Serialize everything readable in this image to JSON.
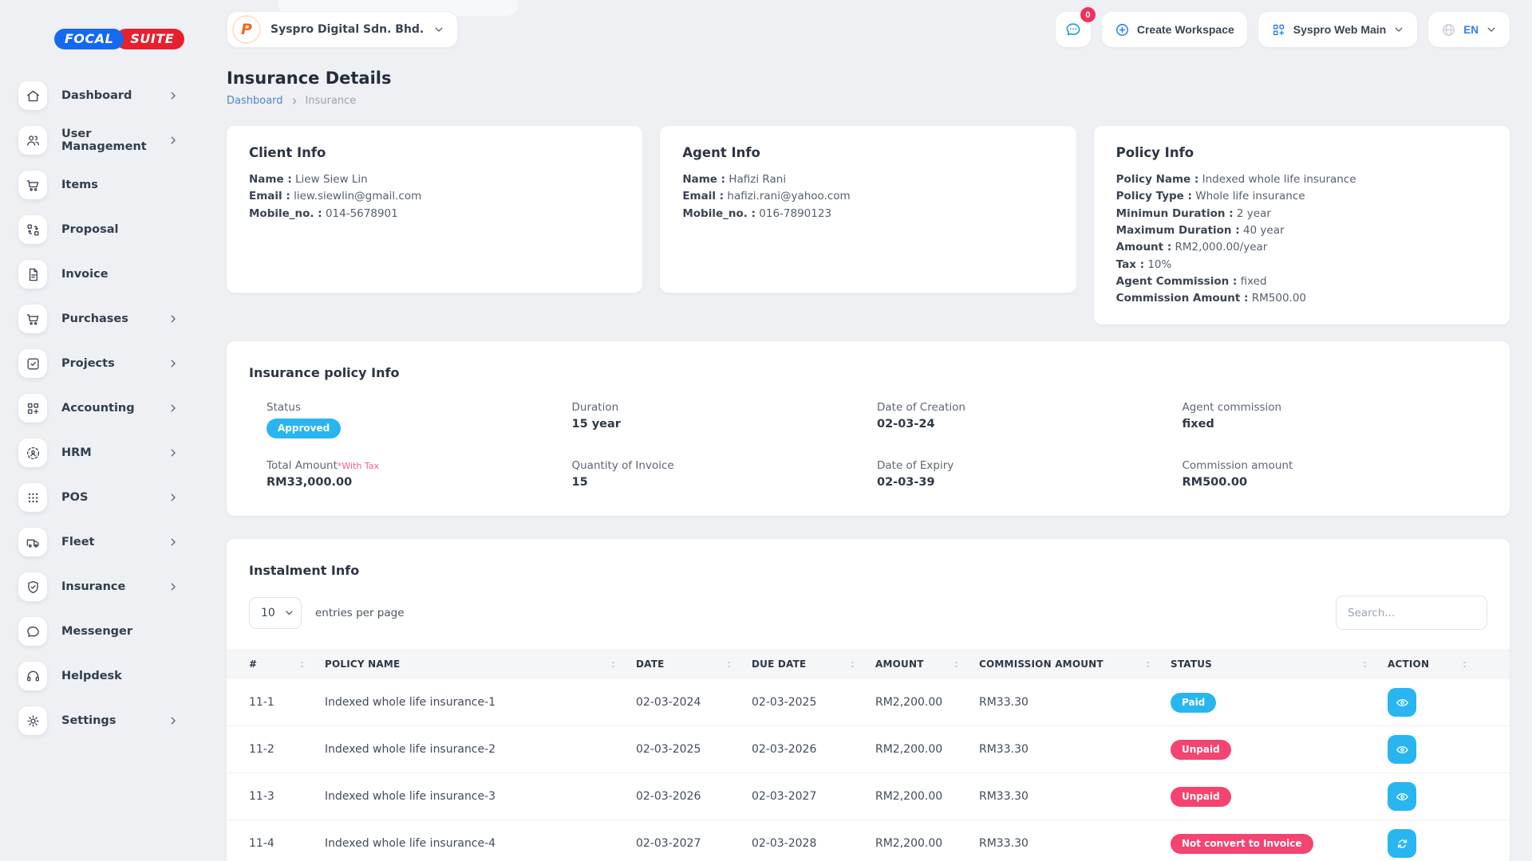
{
  "brand": {
    "focal": "FOCAL",
    "suite": "SUITE"
  },
  "sidebar": {
    "items": [
      {
        "label": "Dashboard",
        "icon": "home",
        "chevron": true
      },
      {
        "label": "User Management",
        "icon": "users",
        "chevron": true
      },
      {
        "label": "Items",
        "icon": "cart",
        "chevron": false
      },
      {
        "label": "Proposal",
        "icon": "transfer",
        "chevron": false
      },
      {
        "label": "Invoice",
        "icon": "file",
        "chevron": false
      },
      {
        "label": "Purchases",
        "icon": "cart",
        "chevron": true
      },
      {
        "label": "Projects",
        "icon": "check-square",
        "chevron": true
      },
      {
        "label": "Accounting",
        "icon": "grid-plus",
        "chevron": true
      },
      {
        "label": "HRM",
        "icon": "user-focus",
        "chevron": true
      },
      {
        "label": "POS",
        "icon": "dots",
        "chevron": true
      },
      {
        "label": "Fleet",
        "icon": "truck",
        "chevron": true
      },
      {
        "label": "Insurance",
        "icon": "shield-check",
        "chevron": true
      },
      {
        "label": "Messenger",
        "icon": "chat",
        "chevron": false
      },
      {
        "label": "Helpdesk",
        "icon": "headset",
        "chevron": false
      },
      {
        "label": "Settings",
        "icon": "gear",
        "chevron": true
      }
    ]
  },
  "header": {
    "workspace_name": "Syspro Digital Sdn. Bhd.",
    "workspace_logo_letter": "P",
    "chat_badge": "0",
    "create_workspace_label": "Create Workspace",
    "app_selector_label": "Syspro Web Main",
    "language_label": "EN"
  },
  "page": {
    "title": "Insurance Details",
    "breadcrumb_home": "Dashboard",
    "breadcrumb_current": "Insurance"
  },
  "cards": {
    "client": {
      "title": "Client Info",
      "fields": [
        {
          "label": "Name :",
          "value": "Liew Siew Lin"
        },
        {
          "label": "Email :",
          "value": "liew.siewlin@gmail.com"
        },
        {
          "label": "Mobile_no. :",
          "value": "014-5678901"
        }
      ]
    },
    "agent": {
      "title": "Agent Info",
      "fields": [
        {
          "label": "Name :",
          "value": "Hafizi Rani"
        },
        {
          "label": "Email :",
          "value": "hafizi.rani@yahoo.com"
        },
        {
          "label": "Mobile_no. :",
          "value": "016-7890123"
        }
      ]
    },
    "policy": {
      "title": "Policy Info",
      "fields": [
        {
          "label": "Policy Name :",
          "value": "Indexed whole life insurance"
        },
        {
          "label": "Policy Type :",
          "value": "Whole life insurance"
        },
        {
          "label": "Minimun Duration :",
          "value": "2 year"
        },
        {
          "label": "Maximum Duration :",
          "value": "40 year"
        },
        {
          "label": "Amount :",
          "value": "RM2,000.00/year"
        },
        {
          "label": "Tax :",
          "value": "10%"
        },
        {
          "label": "Agent Commission :",
          "value": "fixed"
        },
        {
          "label": "Commission Amount :",
          "value": "RM500.00"
        }
      ]
    }
  },
  "policy_info": {
    "title": "Insurance policy Info",
    "cells": [
      {
        "label": "Status",
        "value": "Approved",
        "type": "badge"
      },
      {
        "label": "Duration",
        "value": "15 year"
      },
      {
        "label": "Date of Creation",
        "value": "02-03-24"
      },
      {
        "label": "Agent commission",
        "value": "fixed"
      },
      {
        "label": "Total Amount",
        "suffix": "*With Tax",
        "value": "RM33,000.00"
      },
      {
        "label": "Quantity of Invoice",
        "value": "15"
      },
      {
        "label": "Date of Expiry",
        "value": "02-03-39"
      },
      {
        "label": "Commission amount",
        "value": "RM500.00"
      }
    ]
  },
  "instalment": {
    "title": "Instalment Info",
    "entries_value": "10",
    "entries_label": "entries per page",
    "search_placeholder": "Search...",
    "columns": [
      "#",
      "POLICY NAME",
      "DATE",
      "DUE DATE",
      "AMOUNT",
      "COMMISSION AMOUNT",
      "STATUS",
      "ACTION"
    ],
    "rows": [
      {
        "num": "11-1",
        "policy_name": "Indexed whole life insurance-1",
        "date": "02-03-2024",
        "due_date": "02-03-2025",
        "amount": "RM2,200.00",
        "commission_amount": "RM33.30",
        "status": "Paid",
        "status_style": "paid",
        "action_icon": "eye"
      },
      {
        "num": "11-2",
        "policy_name": "Indexed whole life insurance-2",
        "date": "02-03-2025",
        "due_date": "02-03-2026",
        "amount": "RM2,200.00",
        "commission_amount": "RM33.30",
        "status": "Unpaid",
        "status_style": "unpaid",
        "action_icon": "eye"
      },
      {
        "num": "11-3",
        "policy_name": "Indexed whole life insurance-3",
        "date": "02-03-2026",
        "due_date": "02-03-2027",
        "amount": "RM2,200.00",
        "commission_amount": "RM33.30",
        "status": "Unpaid",
        "status_style": "unpaid",
        "action_icon": "eye"
      },
      {
        "num": "11-4",
        "policy_name": "Indexed whole life insurance-4",
        "date": "02-03-2027",
        "due_date": "02-03-2028",
        "amount": "RM2,200.00",
        "commission_amount": "RM33.30",
        "status": "Not convert to Invoice",
        "status_style": "unpaid",
        "action_icon": "refresh"
      }
    ]
  },
  "colors": {
    "accent_cyan": "#29b5f0",
    "accent_pink": "#f4446f",
    "accent_blue": "#1d7bf0",
    "logo_blue": "#1568f0",
    "logo_red": "#e81f2c",
    "badge_red": "#f3305d"
  }
}
